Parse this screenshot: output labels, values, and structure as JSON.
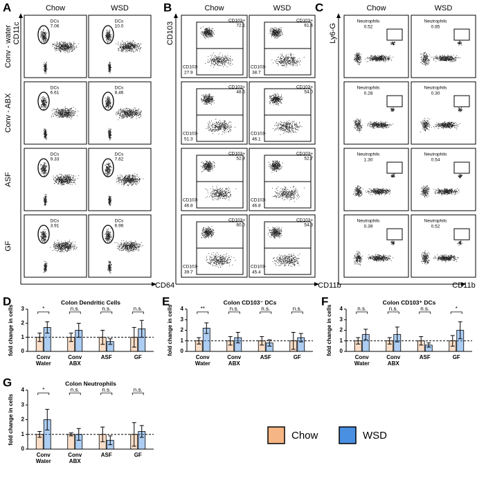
{
  "flow_panels": [
    {
      "letter": "A",
      "columns": [
        "Chow",
        "WSD"
      ],
      "rows": [
        "Conv - water",
        "Conv - ABX",
        "ASF",
        "GF"
      ],
      "y_axis": "CD11c",
      "x_axis": "CD64",
      "gates": [
        [
          [
            {
              "name": "DCs",
              "value": "7.06"
            }
          ],
          [
            {
              "name": "DCs",
              "value": "10.0"
            }
          ]
        ],
        [
          [
            {
              "name": "DCs",
              "value": "6.61"
            }
          ],
          [
            {
              "name": "DCs",
              "value": "8.46"
            }
          ]
        ],
        [
          [
            {
              "name": "DCs",
              "value": "9.33"
            }
          ],
          [
            {
              "name": "DCs",
              "value": "7.62"
            }
          ]
        ],
        [
          [
            {
              "name": "DCs",
              "value": "3.91"
            }
          ],
          [
            {
              "name": "DCs",
              "value": "6.96"
            }
          ]
        ]
      ]
    },
    {
      "letter": "B",
      "columns": [
        "Chow",
        "WSD"
      ],
      "y_axis": "CD103",
      "x_axis": "CD11b",
      "gates": [
        [
          [
            {
              "name": "CD103+",
              "value": "72.1"
            },
            {
              "name": "CD103-",
              "value": "27.9"
            }
          ],
          [
            {
              "name": "CD103+",
              "value": "61.4"
            },
            {
              "name": "CD103-",
              "value": "38.7"
            }
          ]
        ],
        [
          [
            {
              "name": "CD103+",
              "value": "48.6"
            },
            {
              "name": "CD103-",
              "value": "51.3"
            }
          ],
          [
            {
              "name": "CD103+",
              "value": "54.0"
            },
            {
              "name": "CD103-",
              "value": "46.1"
            }
          ]
        ],
        [
          [
            {
              "name": "CD103+",
              "value": "52.9"
            },
            {
              "name": "CD103-",
              "value": "46.8"
            }
          ],
          [
            {
              "name": "CD103+",
              "value": "52.7"
            },
            {
              "name": "CD103-",
              "value": "46.8"
            }
          ]
        ],
        [
          [
            {
              "name": "CD103+",
              "value": "60.0"
            },
            {
              "name": "CD103-",
              "value": "39.7"
            }
          ],
          [
            {
              "name": "CD103+",
              "value": "54.3"
            },
            {
              "name": "CD103-",
              "value": "45.4"
            }
          ]
        ]
      ]
    },
    {
      "letter": "C",
      "columns": [
        "Chow",
        "WSD"
      ],
      "y_axis": "Ly6-G",
      "x_axis": "CD11b",
      "gates": [
        [
          [
            {
              "name": "Neutrophils",
              "value": "0.52"
            }
          ],
          [
            {
              "name": "Neutrophils",
              "value": "0.85"
            }
          ]
        ],
        [
          [
            {
              "name": "Neutrophils",
              "value": "0.28"
            }
          ],
          [
            {
              "name": "Neutrophils",
              "value": "0.30"
            }
          ]
        ],
        [
          [
            {
              "name": "Neutrophils",
              "value": "1.30"
            }
          ],
          [
            {
              "name": "Neutrophils",
              "value": "0.54"
            }
          ]
        ],
        [
          [
            {
              "name": "Neutrophils",
              "value": "0.39"
            }
          ],
          [
            {
              "name": "Neutrophils",
              "value": "0.52"
            }
          ]
        ]
      ]
    }
  ],
  "chart_data": [
    {
      "type": "bar",
      "letter": "D",
      "title": "Colon Dendritic Cells",
      "y_label": "fold change in cells",
      "categories": [
        "Conv Water",
        "Conv ABX",
        "ASF",
        "GF"
      ],
      "ylim": [
        0,
        3
      ],
      "yticks": [
        0,
        1,
        2,
        3
      ],
      "reference_line": 1,
      "significance": [
        "*",
        "n.s.",
        "n.s.",
        "n.s."
      ],
      "series": [
        {
          "name": "Chow",
          "color": "#f5b584",
          "values": [
            1.0,
            1.0,
            1.0,
            1.0
          ],
          "errors": [
            0.3,
            0.3,
            0.5,
            0.7
          ]
        },
        {
          "name": "WSD",
          "color": "#4a90e2",
          "values": [
            1.7,
            1.5,
            0.7,
            1.6
          ],
          "errors": [
            0.4,
            0.5,
            0.2,
            0.6
          ]
        }
      ]
    },
    {
      "type": "bar",
      "letter": "E",
      "title": "Colon CD103⁻ DCs",
      "y_label": "fold change in cells",
      "categories": [
        "Conv Water",
        "Conv ABX",
        "ASF",
        "GF"
      ],
      "ylim": [
        0,
        4
      ],
      "yticks": [
        0,
        1,
        2,
        3,
        4
      ],
      "reference_line": 1,
      "significance": [
        "**",
        "n.s.",
        "n.s.",
        "n.s."
      ],
      "series": [
        {
          "name": "Chow",
          "color": "#f5b584",
          "values": [
            1.0,
            1.0,
            1.0,
            1.0
          ],
          "errors": [
            0.3,
            0.4,
            0.4,
            0.8
          ]
        },
        {
          "name": "WSD",
          "color": "#4a90e2",
          "values": [
            2.2,
            1.3,
            0.8,
            1.3
          ],
          "errors": [
            0.5,
            0.5,
            0.3,
            0.4
          ]
        }
      ]
    },
    {
      "type": "bar",
      "letter": "F",
      "title": "Colon CD103⁺ DCs",
      "y_label": "fold change in cells",
      "categories": [
        "Conv Water",
        "Conv ABX",
        "ASF",
        "GF"
      ],
      "ylim": [
        0,
        4
      ],
      "yticks": [
        0,
        1,
        2,
        3,
        4
      ],
      "reference_line": 1,
      "significance": [
        "n.s.",
        "n.s.",
        "n.s.",
        "*"
      ],
      "series": [
        {
          "name": "Chow",
          "color": "#f5b584",
          "values": [
            1.0,
            1.0,
            1.0,
            1.0
          ],
          "errors": [
            0.3,
            0.3,
            0.4,
            0.5
          ]
        },
        {
          "name": "WSD",
          "color": "#4a90e2",
          "values": [
            1.6,
            1.6,
            0.6,
            2.0
          ],
          "errors": [
            0.5,
            0.7,
            0.2,
            0.8
          ]
        }
      ]
    },
    {
      "type": "bar",
      "letter": "G",
      "title": "Colon Neutrophils",
      "y_label": "fold change in cells",
      "categories": [
        "Conv Water",
        "Conv ABX",
        "ASF",
        "GF"
      ],
      "ylim": [
        0,
        4
      ],
      "yticks": [
        0,
        1,
        2,
        3,
        4
      ],
      "reference_line": 1,
      "significance": [
        "*",
        "n.s.",
        "n.s.",
        "n.s."
      ],
      "series": [
        {
          "name": "Chow",
          "color": "#f5b584",
          "values": [
            1.0,
            1.0,
            1.0,
            1.0
          ],
          "errors": [
            0.2,
            0.1,
            0.5,
            0.8
          ]
        },
        {
          "name": "WSD",
          "color": "#4a90e2",
          "values": [
            2.0,
            1.0,
            0.6,
            1.2
          ],
          "errors": [
            0.7,
            0.4,
            0.3,
            0.4
          ]
        }
      ]
    }
  ]
}
